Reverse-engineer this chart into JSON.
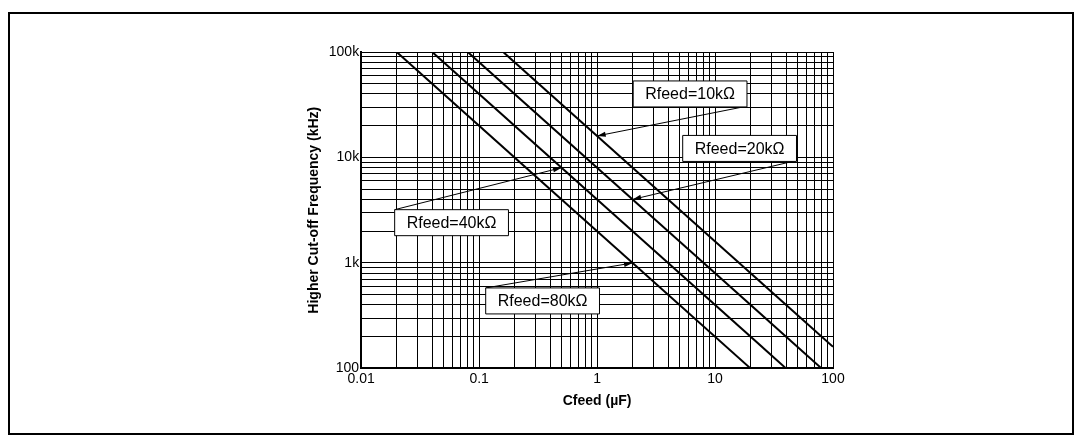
{
  "chart_data": {
    "type": "line",
    "xlabel": "Cfeed (µF)",
    "ylabel": "Higher Cut-off Frequency (kHz)",
    "log": "xy",
    "grid": true,
    "legend": false,
    "marker": "none",
    "line_style": "solid",
    "xlim": [
      0.01,
      100
    ],
    "ylim": [
      100,
      100000
    ],
    "xticks": [
      0.01,
      {
        "value": 0.02,
        "label": null
      },
      {
        "value": 0.03,
        "label": null
      },
      {
        "value": 0.04,
        "label": null
      },
      {
        "value": 0.05,
        "label": null
      },
      {
        "value": 0.06,
        "label": null
      },
      {
        "value": 0.07,
        "label": null
      },
      {
        "value": 0.08,
        "label": null
      },
      {
        "value": 0.09,
        "label": null
      },
      0.1,
      {
        "value": 0.2,
        "label": null
      },
      {
        "value": 0.3,
        "label": null
      },
      {
        "value": 0.4,
        "label": null
      },
      {
        "value": 0.5,
        "label": null
      },
      {
        "value": 0.6,
        "label": null
      },
      {
        "value": 0.7,
        "label": null
      },
      {
        "value": 0.8,
        "label": null
      },
      {
        "value": 0.9,
        "label": null
      },
      1,
      {
        "value": 2,
        "label": null
      },
      {
        "value": 3,
        "label": null
      },
      {
        "value": 4,
        "label": null
      },
      {
        "value": 5,
        "label": null
      },
      {
        "value": 6,
        "label": null
      },
      {
        "value": 7,
        "label": null
      },
      {
        "value": 8,
        "label": null
      },
      {
        "value": 9,
        "label": null
      },
      10,
      {
        "value": 20,
        "label": null
      },
      {
        "value": 30,
        "label": null
      },
      {
        "value": 40,
        "label": null
      },
      {
        "value": 50,
        "label": null
      },
      {
        "value": 60,
        "label": null
      },
      {
        "value": 70,
        "label": null
      },
      {
        "value": 80,
        "label": null
      },
      {
        "value": 90,
        "label": null
      },
      100
    ],
    "yticks": [
      100,
      {
        "value": 200,
        "label": null
      },
      {
        "value": 300,
        "label": null
      },
      {
        "value": 400,
        "label": null
      },
      {
        "value": 500,
        "label": null
      },
      {
        "value": 600,
        "label": null
      },
      {
        "value": 700,
        "label": null
      },
      {
        "value": 800,
        "label": null
      },
      {
        "value": 900,
        "label": null
      },
      {
        "value": 1000,
        "label": "1k"
      },
      {
        "value": 2000,
        "label": null
      },
      {
        "value": 3000,
        "label": null
      },
      {
        "value": 4000,
        "label": null
      },
      {
        "value": 5000,
        "label": null
      },
      {
        "value": 6000,
        "label": null
      },
      {
        "value": 7000,
        "label": null
      },
      {
        "value": 8000,
        "label": null
      },
      {
        "value": 9000,
        "label": null
      },
      {
        "value": 10000,
        "label": "10k"
      },
      {
        "value": 20000,
        "label": null
      },
      {
        "value": 30000,
        "label": null
      },
      {
        "value": 40000,
        "label": null
      },
      {
        "value": 50000,
        "label": null
      },
      {
        "value": 60000,
        "label": null
      },
      {
        "value": 70000,
        "label": null
      },
      {
        "value": 80000,
        "label": null
      },
      {
        "value": 90000,
        "label": null
      },
      {
        "value": 100000,
        "label": "100k"
      }
    ],
    "series": [
      {
        "color": "#000000",
        "x": [
          0.02,
          20
        ],
        "values": [
          100000,
          100
        ]
      },
      {
        "color": "#000000",
        "x": [
          0.04,
          40
        ],
        "values": [
          100000,
          100
        ]
      },
      {
        "color": "#000000",
        "x": [
          0.08,
          80
        ],
        "values": [
          100000,
          100
        ]
      },
      {
        "color": "#000000",
        "x": [
          0.16,
          100
        ],
        "values": [
          100000,
          160
        ]
      }
    ],
    "annotations": [
      {
        "text": "Rfeed=10kΩ",
        "x": 1,
        "y": 16000
      },
      {
        "text": "Rfeed=20kΩ",
        "x": 2,
        "y": 4000
      },
      {
        "text": "Rfeed=40kΩ",
        "x": 0.5,
        "y": 8000
      },
      {
        "text": "Rfeed=80kΩ",
        "x": 2,
        "y": 1000
      }
    ]
  }
}
